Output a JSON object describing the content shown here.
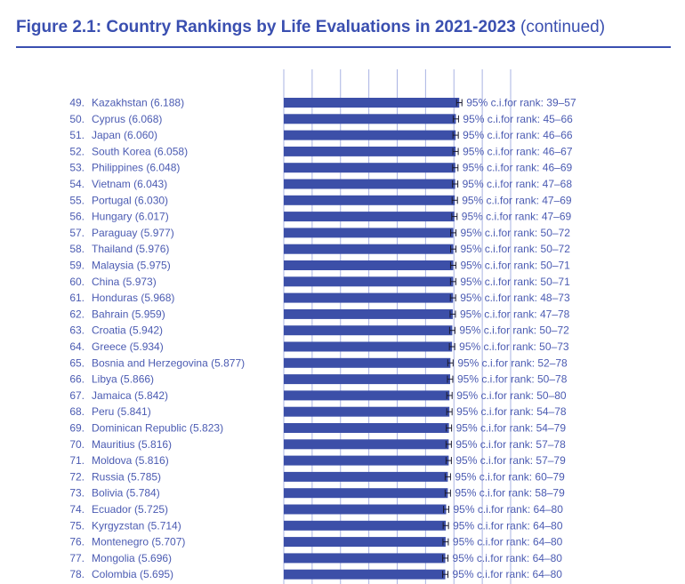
{
  "figure": {
    "title_bold": "Figure 2.1: Country Rankings by Life Evaluations in 2021-2023",
    "title_suffix": "(continued)"
  },
  "colors": {
    "bar": "#3c4fa8",
    "text": "#4b5bb2",
    "grid": "#a9b3e3",
    "title": "#3a4fb0"
  },
  "chart_data": {
    "type": "bar",
    "orientation": "horizontal",
    "title": "Figure 2.1: Country Rankings by Life Evaluations in 2021-2023 (continued)",
    "xlabel": "",
    "ylabel": "",
    "xlim": [
      0,
      8
    ],
    "grid": true,
    "ci_prefix": "95% c.i.for rank: ",
    "rows": [
      {
        "rank": 49,
        "country": "Kazakhstan",
        "value": 6.188,
        "ci": "39–57"
      },
      {
        "rank": 50,
        "country": "Cyprus",
        "value": 6.068,
        "ci": "45–66"
      },
      {
        "rank": 51,
        "country": "Japan",
        "value": 6.06,
        "ci": "46–66"
      },
      {
        "rank": 52,
        "country": "South Korea",
        "value": 6.058,
        "ci": "46–67"
      },
      {
        "rank": 53,
        "country": "Philippines",
        "value": 6.048,
        "ci": "46–69"
      },
      {
        "rank": 54,
        "country": "Vietnam",
        "value": 6.043,
        "ci": "47–68"
      },
      {
        "rank": 55,
        "country": "Portugal",
        "value": 6.03,
        "ci": "47–69"
      },
      {
        "rank": 56,
        "country": "Hungary",
        "value": 6.017,
        "ci": "47–69"
      },
      {
        "rank": 57,
        "country": "Paraguay",
        "value": 5.977,
        "ci": "50–72"
      },
      {
        "rank": 58,
        "country": "Thailand",
        "value": 5.976,
        "ci": "50–72"
      },
      {
        "rank": 59,
        "country": "Malaysia",
        "value": 5.975,
        "ci": "50–71"
      },
      {
        "rank": 60,
        "country": "China",
        "value": 5.973,
        "ci": "50–71"
      },
      {
        "rank": 61,
        "country": "Honduras",
        "value": 5.968,
        "ci": "48–73"
      },
      {
        "rank": 62,
        "country": "Bahrain",
        "value": 5.959,
        "ci": "47–78"
      },
      {
        "rank": 63,
        "country": "Croatia",
        "value": 5.942,
        "ci": "50–72"
      },
      {
        "rank": 64,
        "country": "Greece",
        "value": 5.934,
        "ci": "50–73"
      },
      {
        "rank": 65,
        "country": "Bosnia and Herzegovina",
        "value": 5.877,
        "ci": "52–78"
      },
      {
        "rank": 66,
        "country": "Libya",
        "value": 5.866,
        "ci": "50–78"
      },
      {
        "rank": 67,
        "country": "Jamaica",
        "value": 5.842,
        "ci": "50–80"
      },
      {
        "rank": 68,
        "country": "Peru",
        "value": 5.841,
        "ci": "54–78"
      },
      {
        "rank": 69,
        "country": "Dominican Republic",
        "value": 5.823,
        "ci": "54–79"
      },
      {
        "rank": 70,
        "country": "Mauritius",
        "value": 5.816,
        "ci": "57–78"
      },
      {
        "rank": 71,
        "country": "Moldova",
        "value": 5.816,
        "ci": "57–79"
      },
      {
        "rank": 72,
        "country": "Russia",
        "value": 5.785,
        "ci": "60–79"
      },
      {
        "rank": 73,
        "country": "Bolivia",
        "value": 5.784,
        "ci": "58–79"
      },
      {
        "rank": 74,
        "country": "Ecuador",
        "value": 5.725,
        "ci": "64–80"
      },
      {
        "rank": 75,
        "country": "Kyrgyzstan",
        "value": 5.714,
        "ci": "64–80"
      },
      {
        "rank": 76,
        "country": "Montenegro",
        "value": 5.707,
        "ci": "64–80"
      },
      {
        "rank": 77,
        "country": "Mongolia",
        "value": 5.696,
        "ci": "64–80"
      },
      {
        "rank": 78,
        "country": "Colombia",
        "value": 5.695,
        "ci": "64–80"
      }
    ]
  }
}
